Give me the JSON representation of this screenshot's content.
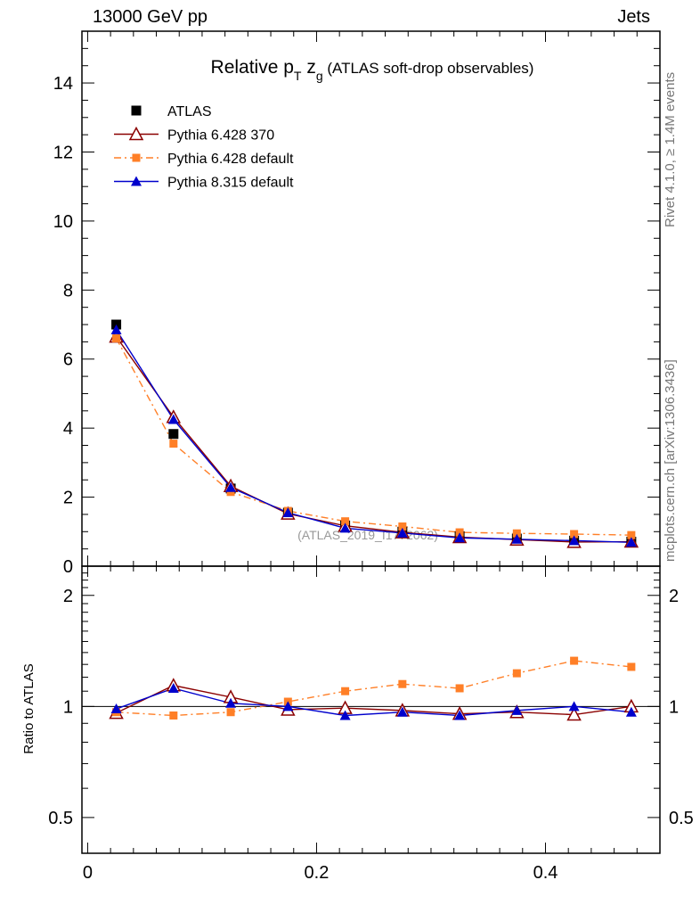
{
  "header": {
    "energy": "13000 GeV pp",
    "process": "Jets"
  },
  "side_labels": {
    "rivet": "Rivet 4.1.0, ≥ 1.4M events",
    "mcplots": "mcplots.cern.ch [arXiv:1306.3436]"
  },
  "colors": {
    "ATLAS": "#000000",
    "Pythia 6.428 370": "#8b0000",
    "Pythia 6.428 default": "#ff7f27",
    "Pythia 8.315 default": "#0000cc"
  },
  "chart_data": [
    {
      "type": "line",
      "panel": "main",
      "title_parts": {
        "pre": "Relative p",
        "sub1": "T",
        "mid": " z",
        "sub2": "g",
        "post": " (ATLAS soft-drop observables)"
      },
      "watermark": "(ATLAS_2019_I1772062)",
      "xlim": [
        -0.005,
        0.5
      ],
      "ylim": [
        0,
        15.5
      ],
      "yticks": [
        0,
        2,
        4,
        6,
        8,
        10,
        12,
        14
      ],
      "yticklabels": [
        "0",
        "2",
        "4",
        "6",
        "8",
        "10",
        "12",
        "14"
      ],
      "x": [
        0.025,
        0.075,
        0.125,
        0.175,
        0.225,
        0.275,
        0.325,
        0.375,
        0.425,
        0.475
      ],
      "series": [
        {
          "name": "ATLAS",
          "marker": "square",
          "line": "none",
          "values": [
            7.0,
            3.83,
            2.25,
            1.55,
            1.18,
            1.0,
            0.87,
            0.8,
            0.74,
            0.71
          ]
        },
        {
          "name": "Pythia 6.428 370",
          "marker": "open-triangle",
          "line": "solid",
          "values": [
            6.65,
            4.32,
            2.32,
            1.52,
            1.17,
            0.98,
            0.84,
            0.77,
            0.7,
            0.71
          ]
        },
        {
          "name": "Pythia 6.428 default",
          "marker": "small-square",
          "line": "dashdot",
          "values": [
            6.6,
            3.55,
            2.15,
            1.6,
            1.3,
            1.15,
            0.98,
            0.95,
            0.93,
            0.9
          ]
        },
        {
          "name": "Pythia 8.315 default",
          "marker": "filled-triangle",
          "line": "solid",
          "values": [
            6.85,
            4.25,
            2.28,
            1.55,
            1.1,
            0.96,
            0.82,
            0.78,
            0.74,
            0.69
          ]
        }
      ]
    },
    {
      "type": "line",
      "panel": "ratio",
      "ylabel": "Ratio to ATLAS",
      "xlim": [
        -0.005,
        0.5
      ],
      "ylim": [
        0.4,
        2.4
      ],
      "yticks": [
        0.5,
        1,
        2
      ],
      "yticklabels": [
        "0.5",
        "1",
        "2"
      ],
      "xticks": [
        0,
        0.2,
        0.4
      ],
      "xticklabels": [
        "0",
        "0.2",
        "0.4"
      ],
      "x": [
        0.025,
        0.075,
        0.125,
        0.175,
        0.225,
        0.275,
        0.325,
        0.375,
        0.425,
        0.475
      ],
      "series": [
        {
          "name": "Pythia 6.428 370",
          "marker": "open-triangle",
          "line": "solid",
          "values": [
            0.96,
            1.14,
            1.06,
            0.98,
            0.99,
            0.975,
            0.955,
            0.965,
            0.95,
            1.0
          ]
        },
        {
          "name": "Pythia 6.428 default",
          "marker": "small-square",
          "line": "dashdot",
          "values": [
            0.965,
            0.945,
            0.965,
            1.03,
            1.1,
            1.15,
            1.12,
            1.23,
            1.33,
            1.28
          ]
        },
        {
          "name": "Pythia 8.315 default",
          "marker": "filled-triangle",
          "line": "solid",
          "values": [
            0.985,
            1.12,
            1.02,
            1.0,
            0.945,
            0.965,
            0.945,
            0.975,
            1.0,
            0.965
          ]
        }
      ]
    }
  ]
}
